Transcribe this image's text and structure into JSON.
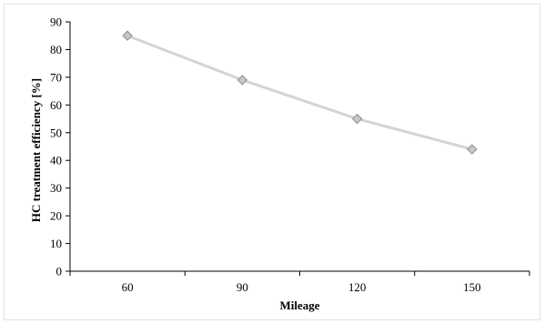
{
  "chart_data": {
    "type": "line",
    "categories": [
      "60",
      "90",
      "120",
      "150"
    ],
    "series": [
      {
        "values": [
          85,
          69,
          55,
          44
        ]
      }
    ],
    "title": "",
    "xlabel": "Mileage",
    "ylabel": "HC treatment efficiency [%]",
    "ylim": [
      0,
      90
    ],
    "yticks": [
      0,
      10,
      20,
      30,
      40,
      50,
      60,
      70,
      80,
      90
    ],
    "grid": false,
    "legend": "none",
    "colors": {
      "line": "#d4d4d4",
      "marker_fill": "#c8c8c8",
      "marker_stroke": "#8a8a8a",
      "axis": "#000000"
    }
  }
}
